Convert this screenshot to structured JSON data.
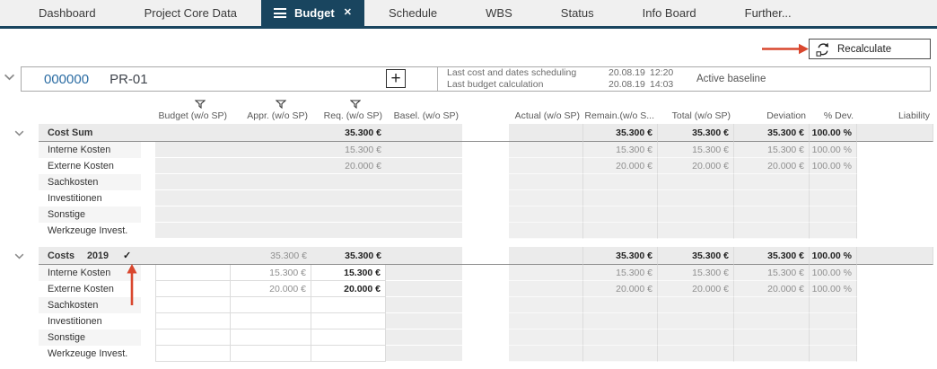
{
  "tabs": [
    {
      "label": "Dashboard",
      "active": false
    },
    {
      "label": "Project Core Data",
      "active": false
    },
    {
      "label": "Budget",
      "active": true
    },
    {
      "label": "Schedule",
      "active": false
    },
    {
      "label": "WBS",
      "active": false
    },
    {
      "label": "Status",
      "active": false
    },
    {
      "label": "Info Board",
      "active": false
    },
    {
      "label": "Further...",
      "active": false
    }
  ],
  "toolbar": {
    "recalculate_label": "Recalculate"
  },
  "project": {
    "id": "000000",
    "name": "PR-01",
    "add_button": "+",
    "info": [
      {
        "label": "Last cost and dates scheduling",
        "date": "20.08.19",
        "time": "12:20"
      },
      {
        "label": "Last budget calculation",
        "date": "20.08.19",
        "time": "14:03"
      }
    ],
    "baseline_status": "Active baseline"
  },
  "table": {
    "columns": {
      "budget": "Budget (w/o SP)",
      "appr": "Appr. (w/o SP)",
      "req": "Req. (w/o SP)",
      "basel": "Basel. (w/o SP)",
      "actual": "Actual (w/o SP)",
      "remain": "Remain.(w/o S...",
      "total": "Total (w/o SP)",
      "deviation": "Deviation",
      "pdev": "% Dev.",
      "liability": "Liability"
    },
    "sections": [
      {
        "title": "Cost Sum",
        "editable": false,
        "header_cells": {
          "req": [
            "35.300 €",
            "b"
          ],
          "remain": [
            "35.300 €",
            "b"
          ],
          "total": [
            "35.300 €",
            "b"
          ],
          "deviation": [
            "35.300 €",
            "b"
          ],
          "pdev": [
            "100.00 %",
            "b"
          ]
        },
        "rows": [
          {
            "label": "Interne Kosten",
            "cells": {
              "req": [
                "15.300 €",
                "m"
              ],
              "remain": [
                "15.300 €",
                "m"
              ],
              "total": [
                "15.300 €",
                "m"
              ],
              "deviation": [
                "15.300 €",
                "m"
              ],
              "pdev": [
                "100.00 %",
                "m"
              ]
            }
          },
          {
            "label": "Externe Kosten",
            "cells": {
              "req": [
                "20.000 €",
                "m"
              ],
              "remain": [
                "20.000 €",
                "m"
              ],
              "total": [
                "20.000 €",
                "m"
              ],
              "deviation": [
                "20.000 €",
                "m"
              ],
              "pdev": [
                "100.00 %",
                "m"
              ]
            }
          },
          {
            "label": "Sachkosten",
            "cells": {}
          },
          {
            "label": "Investitionen",
            "cells": {}
          },
          {
            "label": "Sonstige",
            "cells": {}
          },
          {
            "label": "Werkzeuge Invest.",
            "cells": {}
          }
        ]
      },
      {
        "title": "Costs",
        "year": "2019",
        "check": "✓",
        "editable": true,
        "header_cells": {
          "appr": [
            "35.300 €",
            "m"
          ],
          "req": [
            "35.300 €",
            "b"
          ],
          "remain": [
            "35.300 €",
            "b"
          ],
          "total": [
            "35.300 €",
            "b"
          ],
          "deviation": [
            "35.300 €",
            "b"
          ],
          "pdev": [
            "100.00 %",
            "b"
          ]
        },
        "rows": [
          {
            "label": "Interne Kosten",
            "cells": {
              "appr": [
                "15.300 €",
                "m"
              ],
              "req": [
                "15.300 €",
                "b"
              ],
              "remain": [
                "15.300 €",
                "m"
              ],
              "total": [
                "15.300 €",
                "m"
              ],
              "deviation": [
                "15.300 €",
                "m"
              ],
              "pdev": [
                "100.00 %",
                "m"
              ]
            }
          },
          {
            "label": "Externe Kosten",
            "cells": {
              "appr": [
                "20.000 €",
                "m"
              ],
              "req": [
                "20.000 €",
                "b"
              ],
              "remain": [
                "20.000 €",
                "m"
              ],
              "total": [
                "20.000 €",
                "m"
              ],
              "deviation": [
                "20.000 €",
                "m"
              ],
              "pdev": [
                "100.00 %",
                "m"
              ]
            }
          },
          {
            "label": "Sachkosten",
            "cells": {}
          },
          {
            "label": "Investitionen",
            "cells": {}
          },
          {
            "label": "Sonstige",
            "cells": {}
          },
          {
            "label": "Werkzeuge Invest.",
            "cells": {}
          }
        ]
      }
    ]
  },
  "colors": {
    "accent_navy": "#19455f",
    "annotation_arrow": "#d9472e",
    "project_id_blue": "#2b6ca3"
  }
}
